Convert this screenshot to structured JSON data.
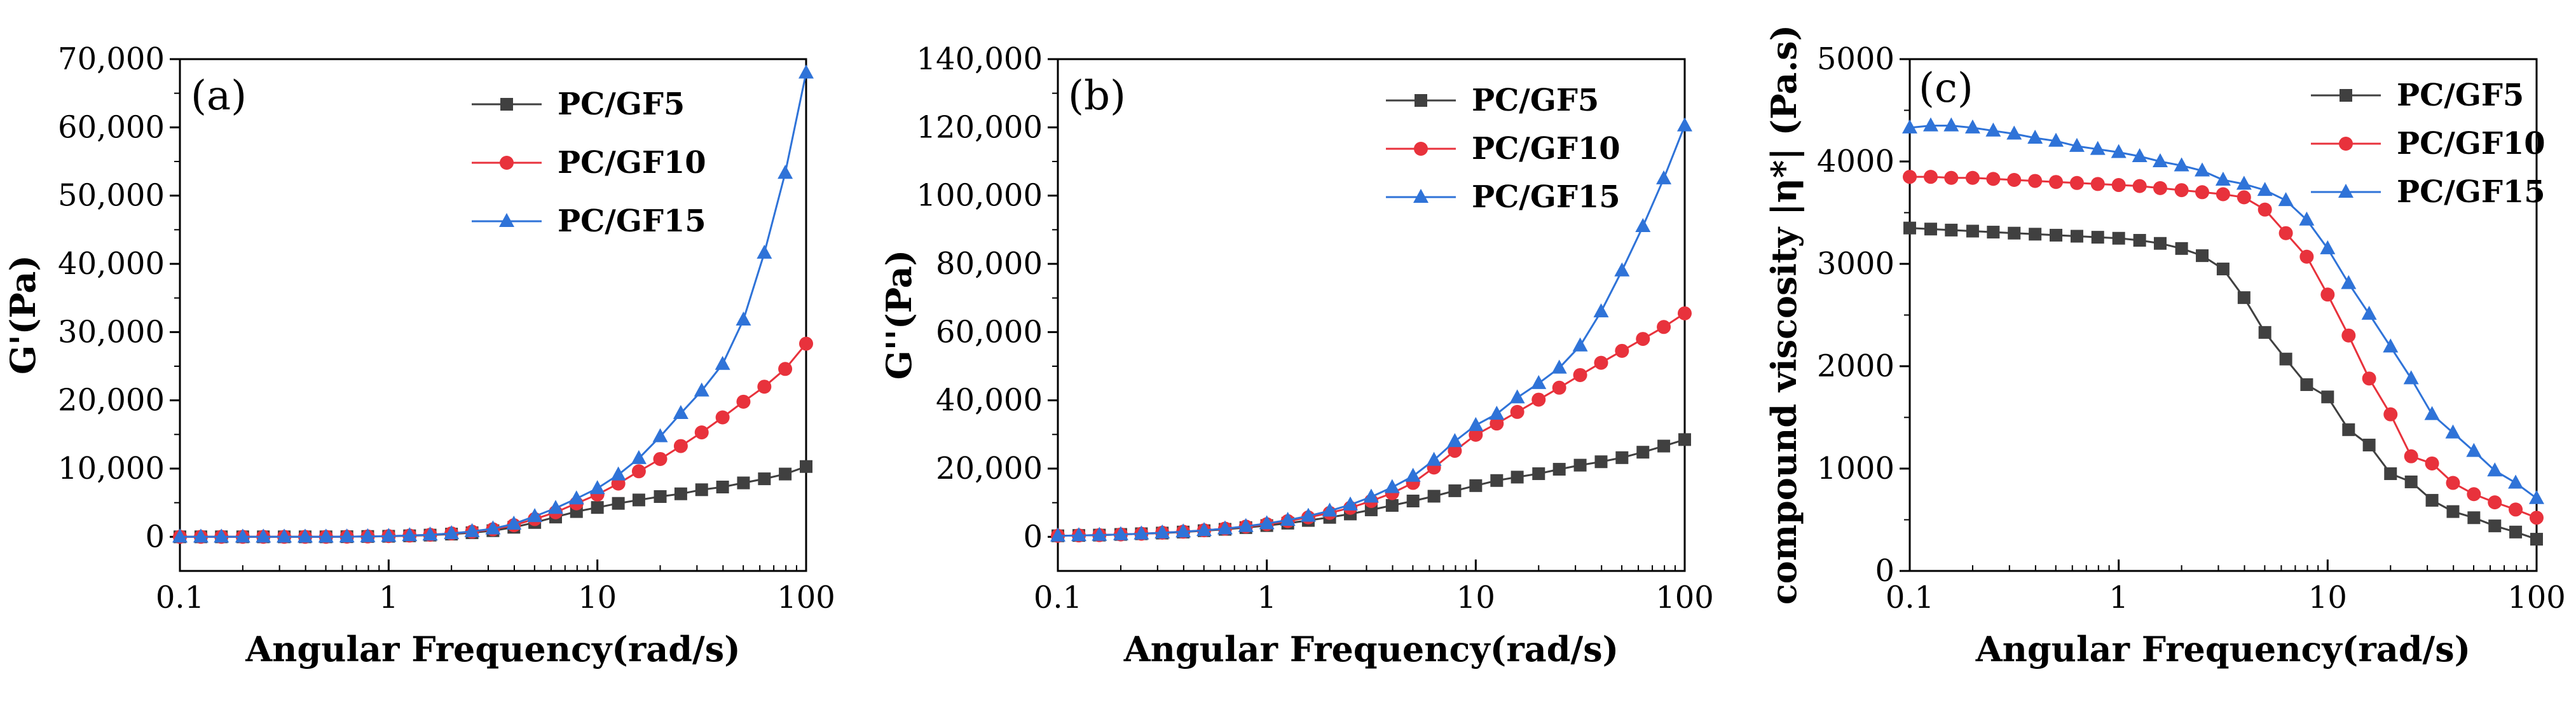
{
  "figure": {
    "series_styles": [
      {
        "name": "PC/GF5",
        "color": "#404040",
        "marker": "square"
      },
      {
        "name": "PC/GF10",
        "color": "#e8323c",
        "marker": "circle"
      },
      {
        "name": "PC/GF15",
        "color": "#2f73d8",
        "marker": "triangle"
      }
    ]
  },
  "chart_data": [
    {
      "type": "line",
      "panel_label": "(a)",
      "title": "",
      "xlabel": "Angular Frequency(rad/s)",
      "ylabel": "G'(Pa)",
      "xscale": "log",
      "xlim": [
        0.1,
        100
      ],
      "ylim": [
        -5000,
        70000
      ],
      "xticks": [
        0.1,
        1,
        10,
        100
      ],
      "xtick_labels": [
        "0.1",
        "1",
        "10",
        "100"
      ],
      "yticks": [
        0,
        10000,
        20000,
        30000,
        40000,
        50000,
        60000,
        70000
      ],
      "ytick_labels": [
        "0",
        "10,000",
        "20,000",
        "30,000",
        "40,000",
        "50,000",
        "60,000",
        "70,000"
      ],
      "legend_position": "top-center",
      "x": [
        0.1,
        0.126,
        0.158,
        0.2,
        0.251,
        0.316,
        0.398,
        0.501,
        0.631,
        0.794,
        1,
        1.26,
        1.58,
        2,
        2.51,
        3.16,
        3.98,
        5.01,
        6.31,
        7.94,
        10,
        12.6,
        15.8,
        20,
        25.1,
        31.6,
        39.8,
        50.1,
        63.1,
        79.4,
        100
      ],
      "series": [
        {
          "name": "PC/GF5",
          "values": [
            0,
            0,
            0,
            0,
            0,
            0,
            0,
            0,
            20,
            50,
            80,
            150,
            250,
            400,
            600,
            900,
            1400,
            2100,
            2900,
            3700,
            4300,
            4900,
            5400,
            5900,
            6300,
            6900,
            7300,
            7900,
            8500,
            9200,
            10300
          ]
        },
        {
          "name": "PC/GF10",
          "values": [
            0,
            0,
            0,
            0,
            0,
            0,
            0,
            0,
            20,
            50,
            100,
            180,
            300,
            500,
            750,
            1100,
            1700,
            2600,
            3600,
            4900,
            6200,
            7800,
            9600,
            11400,
            13300,
            15300,
            17500,
            19800,
            22000,
            24600,
            28300
          ]
        },
        {
          "name": "PC/GF15",
          "values": [
            0,
            0,
            0,
            0,
            0,
            0,
            0,
            0,
            20,
            60,
            100,
            200,
            300,
            500,
            800,
            1200,
            1900,
            3000,
            4200,
            5600,
            7100,
            9100,
            11500,
            14700,
            18100,
            21400,
            25300,
            31800,
            41600,
            53300,
            68000
          ]
        }
      ]
    },
    {
      "type": "line",
      "panel_label": "(b)",
      "title": "",
      "xlabel": "Angular Frequency(rad/s)",
      "ylabel": "G''(Pa)",
      "xscale": "log",
      "xlim": [
        0.1,
        100
      ],
      "ylim": [
        -10000,
        140000
      ],
      "xticks": [
        0.1,
        1,
        10,
        100
      ],
      "xtick_labels": [
        "0.1",
        "1",
        "10",
        "100"
      ],
      "yticks": [
        0,
        20000,
        40000,
        60000,
        80000,
        100000,
        120000,
        140000
      ],
      "ytick_labels": [
        "0",
        "20,000",
        "40,000",
        "60,000",
        "80,000",
        "100,000",
        "120,000",
        "140,000"
      ],
      "legend_position": "top-center",
      "x": [
        0.1,
        0.126,
        0.158,
        0.2,
        0.251,
        0.316,
        0.398,
        0.501,
        0.631,
        0.794,
        1,
        1.26,
        1.58,
        2,
        2.51,
        3.16,
        3.98,
        5.01,
        6.31,
        7.94,
        10,
        12.6,
        15.8,
        20,
        25.1,
        31.6,
        39.8,
        50.1,
        63.1,
        79.4,
        100
      ],
      "series": [
        {
          "name": "PC/GF5",
          "values": [
            300,
            400,
            500,
            700,
            900,
            1100,
            1400,
            1800,
            2200,
            2700,
            3300,
            4000,
            4800,
            5700,
            6700,
            7900,
            9200,
            10500,
            11900,
            13500,
            15000,
            16500,
            17500,
            18500,
            19800,
            21000,
            22000,
            23200,
            24800,
            26600,
            28500
          ]
        },
        {
          "name": "PC/GF10",
          "values": [
            300,
            400,
            500,
            700,
            900,
            1200,
            1500,
            1900,
            2400,
            3000,
            3700,
            4600,
            5700,
            7000,
            8500,
            10500,
            12800,
            15800,
            20300,
            25200,
            29900,
            33200,
            36600,
            40200,
            43700,
            47400,
            51000,
            54500,
            58000,
            61500,
            65500
          ]
        },
        {
          "name": "PC/GF15",
          "values": [
            300,
            400,
            500,
            700,
            900,
            1200,
            1500,
            1900,
            2400,
            3100,
            3900,
            4900,
            6100,
            7600,
            9400,
            11700,
            14500,
            17800,
            22500,
            28000,
            32700,
            36000,
            40800,
            45000,
            49500,
            56000,
            66000,
            78000,
            91000,
            105000,
            120500
          ]
        }
      ]
    },
    {
      "type": "line",
      "panel_label": "(c)",
      "title": "",
      "xlabel": "Angular Frequency(rad/s)",
      "ylabel": "compound viscosity |η*| (Pa.s)",
      "xscale": "log",
      "xlim": [
        0.1,
        100
      ],
      "ylim": [
        0,
        5000
      ],
      "xticks": [
        0.1,
        1,
        10,
        100
      ],
      "xtick_labels": [
        "0.1",
        "1",
        "10",
        "100"
      ],
      "yticks": [
        0,
        1000,
        2000,
        3000,
        4000,
        5000
      ],
      "ytick_labels": [
        "0",
        "1000",
        "2000",
        "3000",
        "4000",
        "5000"
      ],
      "legend_position": "top-right",
      "x": [
        0.1,
        0.126,
        0.158,
        0.2,
        0.251,
        0.316,
        0.398,
        0.501,
        0.631,
        0.794,
        1,
        1.26,
        1.58,
        2,
        2.51,
        3.16,
        3.98,
        5.01,
        6.31,
        7.94,
        10,
        12.6,
        15.8,
        20,
        25.1,
        31.6,
        39.8,
        50.1,
        63.1,
        79.4,
        100
      ],
      "series": [
        {
          "name": "PC/GF5",
          "values": [
            3350,
            3340,
            3330,
            3320,
            3310,
            3300,
            3290,
            3280,
            3270,
            3260,
            3250,
            3230,
            3200,
            3150,
            3080,
            2950,
            2670,
            2330,
            2070,
            1820,
            1700,
            1380,
            1230,
            950,
            870,
            690,
            580,
            520,
            440,
            380,
            310
          ]
        },
        {
          "name": "PC/GF10",
          "values": [
            3850,
            3850,
            3840,
            3840,
            3830,
            3820,
            3810,
            3800,
            3790,
            3780,
            3770,
            3760,
            3740,
            3720,
            3700,
            3680,
            3650,
            3530,
            3300,
            3070,
            2700,
            2300,
            1880,
            1530,
            1120,
            1050,
            860,
            750,
            670,
            600,
            520
          ]
        },
        {
          "name": "PC/GF15",
          "values": [
            4330,
            4350,
            4350,
            4330,
            4300,
            4270,
            4230,
            4200,
            4150,
            4120,
            4090,
            4050,
            4000,
            3960,
            3910,
            3820,
            3780,
            3720,
            3620,
            3430,
            3150,
            2810,
            2510,
            2190,
            1880,
            1530,
            1350,
            1170,
            980,
            860,
            710
          ]
        }
      ]
    }
  ]
}
